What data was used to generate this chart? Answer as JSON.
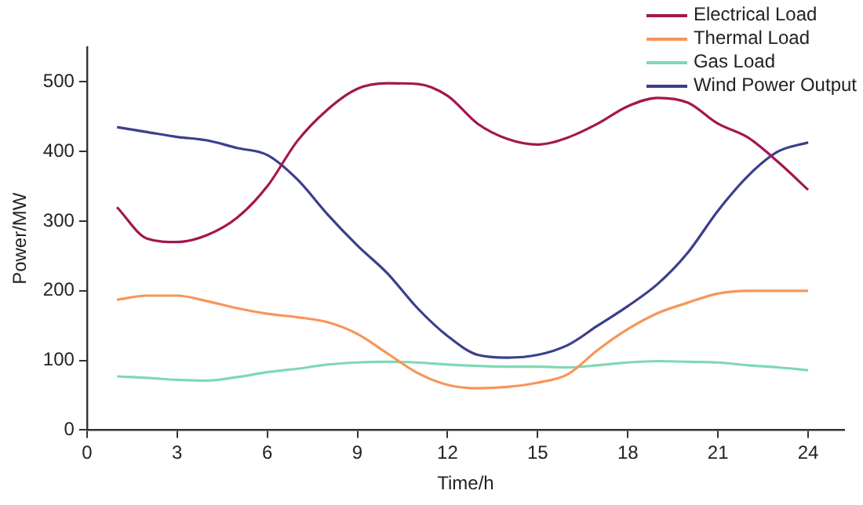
{
  "chart_data": {
    "type": "line",
    "xlabel": "Time/h",
    "ylabel": "Power/MW",
    "x": [
      1,
      2,
      3,
      4,
      5,
      6,
      7,
      8,
      9,
      10,
      11,
      12,
      13,
      14,
      15,
      16,
      17,
      18,
      19,
      20,
      21,
      22,
      23,
      24
    ],
    "xlim": [
      0,
      25.2
    ],
    "xticks": [
      0,
      3,
      6,
      9,
      12,
      15,
      18,
      21,
      24
    ],
    "ylim": [
      0,
      550
    ],
    "yticks": [
      0,
      100,
      200,
      300,
      400,
      500
    ],
    "grid": false,
    "legend": "top right",
    "marker": "none",
    "line_style": "solid",
    "series": [
      {
        "name": "Electrical Load",
        "color": "#a3174f",
        "values": [
          320,
          275,
          270,
          280,
          305,
          350,
          415,
          460,
          490,
          498,
          497,
          480,
          440,
          418,
          410,
          420,
          440,
          465,
          477,
          470,
          440,
          420,
          385,
          345
        ]
      },
      {
        "name": "Thermal Load",
        "color": "#f7955a",
        "values": [
          187,
          193,
          193,
          185,
          175,
          167,
          162,
          155,
          138,
          110,
          82,
          65,
          60,
          62,
          68,
          80,
          115,
          145,
          168,
          183,
          196,
          200,
          200,
          200
        ]
      },
      {
        "name": "Gas Load",
        "color": "#7fd8b5",
        "values": [
          77,
          75,
          72,
          71,
          76,
          83,
          88,
          94,
          97,
          98,
          97,
          94,
          92,
          91,
          91,
          90,
          93,
          97,
          99,
          98,
          97,
          93,
          90,
          86
        ]
      },
      {
        "name": "Wind Power Output",
        "color": "#3b3f8c",
        "values": [
          435,
          428,
          421,
          416,
          405,
          395,
          360,
          310,
          265,
          225,
          175,
          135,
          108,
          104,
          108,
          122,
          150,
          178,
          210,
          255,
          315,
          365,
          400,
          413
        ]
      }
    ]
  }
}
